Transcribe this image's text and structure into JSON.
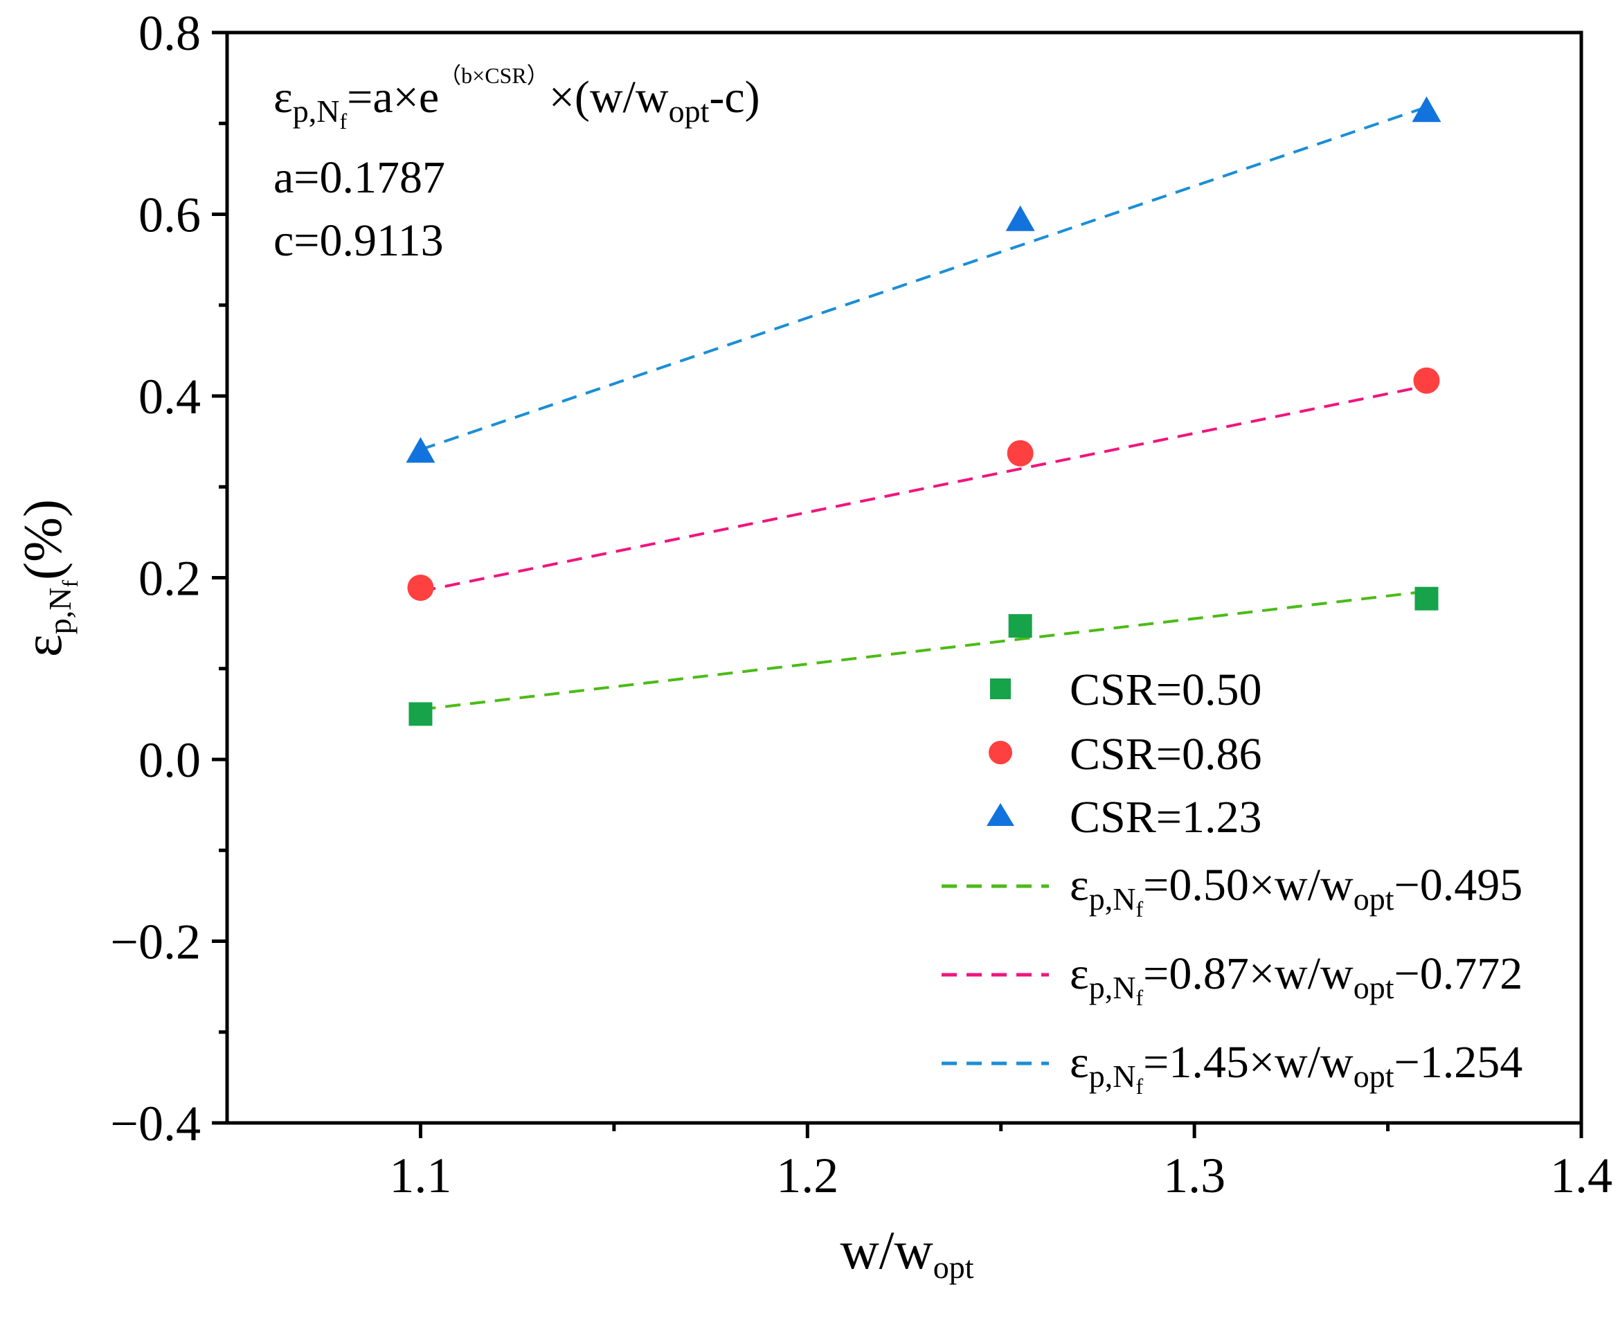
{
  "chart_data": {
    "type": "scatter",
    "x_axis": {
      "label": "w/w",
      "label_sub": "opt",
      "range": [
        1.05,
        1.4
      ],
      "major_ticks": [
        1.1,
        1.2,
        1.3,
        1.4
      ],
      "tick_labels": [
        "1.1",
        "1.2",
        "1.3",
        "1.4"
      ],
      "minor_ticks": [
        1.15,
        1.25,
        1.35
      ]
    },
    "y_axis": {
      "label_symbol": "ε",
      "label_sub": "p,N",
      "label_subsub": "f",
      "label_unit": "(%)",
      "range": [
        -0.4,
        0.8
      ],
      "major_ticks": [
        -0.4,
        -0.2,
        0.0,
        0.2,
        0.4,
        0.6,
        0.8
      ],
      "tick_labels": [
        "−0.4",
        "−0.2",
        "0.0",
        "0.2",
        "0.4",
        "0.6",
        "0.8"
      ],
      "minor_ticks": [
        -0.3,
        -0.1,
        0.1,
        0.3,
        0.5,
        0.7
      ]
    },
    "series": [
      {
        "name": "CSR=0.50",
        "marker": "square",
        "color": "#16a34a",
        "x": [
          1.1,
          1.255,
          1.36
        ],
        "y": [
          0.05,
          0.147,
          0.177
        ]
      },
      {
        "name": "CSR=0.86",
        "marker": "circle",
        "color": "#ff4040",
        "x": [
          1.1,
          1.255,
          1.36
        ],
        "y": [
          0.189,
          0.337,
          0.417
        ]
      },
      {
        "name": "CSR=1.23",
        "marker": "triangle",
        "color": "#1273de",
        "x": [
          1.1,
          1.255,
          1.36
        ],
        "y": [
          0.338,
          0.593,
          0.713
        ]
      }
    ],
    "fit_lines": [
      {
        "name": "fit-csr-050",
        "color": "#4cbb17",
        "slope": 0.5,
        "intercept": -0.495,
        "x_range": [
          1.1,
          1.36
        ],
        "label_sym": "ε",
        "label_sub": "p,N",
        "label_subsub": "f",
        "label_eq": "=0.50×w/w",
        "label_sub2": "opt",
        "label_tail": "−0.495"
      },
      {
        "name": "fit-csr-086",
        "color": "#f0157d",
        "slope": 0.87,
        "intercept": -0.772,
        "x_range": [
          1.1,
          1.36
        ],
        "label_sym": "ε",
        "label_sub": "p,N",
        "label_subsub": "f",
        "label_eq": "=0.87×w/w",
        "label_sub2": "opt",
        "label_tail": "−0.772"
      },
      {
        "name": "fit-csr-123",
        "color": "#1a8ed6",
        "slope": 1.45,
        "intercept": -1.254,
        "x_range": [
          1.1,
          1.36
        ],
        "label_sym": "ε",
        "label_sub": "p,N",
        "label_subsub": "f",
        "label_eq": "=1.45×w/w",
        "label_sub2": "opt",
        "label_tail": "−1.254"
      }
    ],
    "annotation": {
      "formula_sym": "ε",
      "formula_sub": "p,N",
      "formula_subsub": "f",
      "formula_eq": "=a×e",
      "formula_sup": "（b×CSR）",
      "formula_tail": "×(w/w",
      "formula_tail_sub": "opt",
      "formula_end": "-c)",
      "a_text": "a=0.1787",
      "c_text": "c=0.9113"
    },
    "legend_position": "bottom-right",
    "grid": false
  }
}
